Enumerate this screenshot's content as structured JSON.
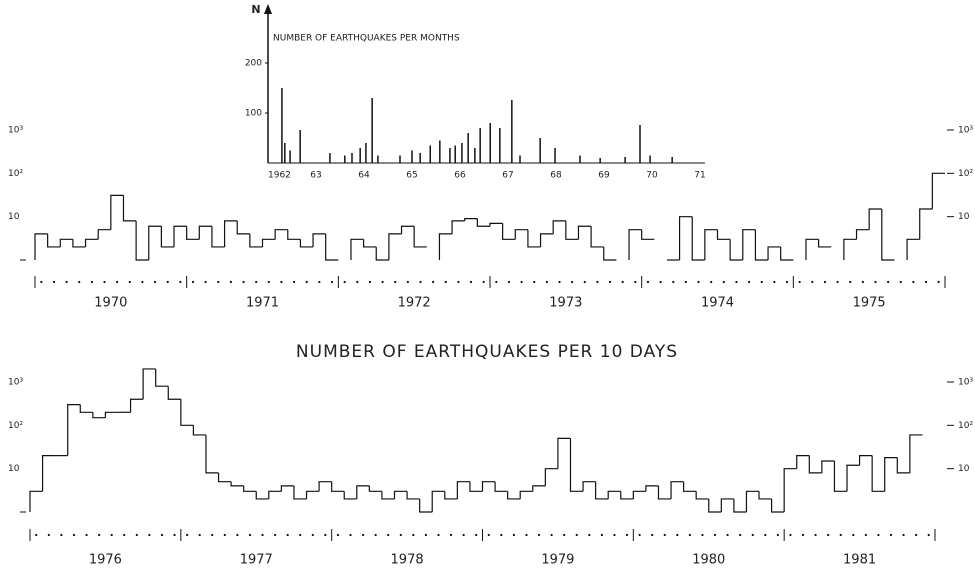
{
  "chart_data": [
    {
      "type": "bar",
      "title": "NUMBER OF EARTHQUAKES PER MONTHS",
      "y_label": "N",
      "color": "#111",
      "x": [
        1962.29,
        1962.35,
        1962.46,
        1962.67,
        1963.29,
        1963.6,
        1963.75,
        1963.92,
        1964.04,
        1964.17,
        1964.29,
        1964.75,
        1965.0,
        1965.17,
        1965.38,
        1965.58,
        1965.79,
        1965.9,
        1966.04,
        1966.17,
        1966.31,
        1966.42,
        1966.63,
        1966.83,
        1967.08,
        1967.25,
        1967.67,
        1967.98,
        1968.5,
        1968.92,
        1969.44,
        1969.75,
        1969.96,
        1970.42
      ],
      "values": [
        150,
        40,
        25,
        66,
        20,
        15,
        20,
        30,
        40,
        130,
        15,
        15,
        25,
        20,
        35,
        45,
        30,
        35,
        40,
        60,
        30,
        70,
        80,
        70,
        126,
        15,
        50,
        30,
        15,
        10,
        12,
        76,
        15,
        12
      ],
      "xlim": [
        1962,
        1971
      ],
      "xticks": [
        {
          "value": 1962,
          "label": "1962"
        },
        {
          "value": 1963,
          "label": "63"
        },
        {
          "value": 1964,
          "label": "64"
        },
        {
          "value": 1965,
          "label": "65"
        },
        {
          "value": 1966,
          "label": "66"
        },
        {
          "value": 1967,
          "label": "67"
        },
        {
          "value": 1968,
          "label": "68"
        },
        {
          "value": 1969,
          "label": "69"
        },
        {
          "value": 1970,
          "label": "70"
        },
        {
          "value": 1971,
          "label": "71"
        }
      ],
      "ylim": [
        0,
        280
      ],
      "yticks": [
        100,
        200
      ]
    },
    {
      "type": "step",
      "log": true,
      "color": "#111",
      "title": "NUMBER OF EARTHQUAKES PER 10 DAYS",
      "categories": [
        "1970",
        "1971",
        "1972",
        "1973",
        "1974",
        "1975"
      ],
      "values": [
        [
          4,
          2,
          3,
          2,
          3,
          5,
          31,
          8,
          1,
          6,
          2,
          6
        ],
        [
          3,
          6,
          2,
          8,
          4,
          2,
          3,
          5,
          3,
          2,
          4,
          1
        ],
        [
          null,
          3,
          2,
          1,
          4,
          6,
          2,
          null,
          4,
          8,
          9,
          6
        ],
        [
          7,
          3,
          5,
          2,
          4,
          8,
          3,
          6,
          2,
          1,
          null,
          5
        ],
        [
          3,
          null,
          1,
          10,
          1,
          5,
          3,
          1,
          5,
          1,
          2,
          1
        ],
        [
          null,
          3,
          2,
          null,
          3,
          5,
          15,
          1,
          null,
          3,
          15,
          100
        ]
      ],
      "ylim": [
        1,
        1000
      ],
      "yticks": [
        {
          "value": 1000,
          "label": "10³"
        },
        {
          "value": 100,
          "label": "10²"
        },
        10
      ]
    },
    {
      "type": "step",
      "log": true,
      "color": "#111",
      "categories": [
        "1976",
        "1977",
        "1978",
        "1979",
        "1980",
        "1981"
      ],
      "values": [
        [
          3,
          20,
          20,
          300,
          200,
          150,
          200,
          200,
          400,
          2000,
          800,
          400
        ],
        [
          100,
          60,
          8,
          5,
          4,
          3,
          2,
          3,
          4,
          2,
          3,
          5
        ],
        [
          3,
          2,
          4,
          3,
          2,
          3,
          2,
          1,
          3,
          2,
          5,
          3
        ],
        [
          5,
          3,
          2,
          3,
          4,
          10,
          50,
          3,
          5,
          2,
          3,
          2
        ],
        [
          3,
          4,
          2,
          5,
          3,
          2,
          1,
          2,
          1,
          3,
          2,
          1
        ],
        [
          10,
          20,
          8,
          15,
          3,
          12,
          20,
          3,
          18,
          8,
          60,
          null
        ]
      ],
      "ylim": [
        1,
        1000
      ],
      "yticks": [
        {
          "value": 1000,
          "label": "10³"
        },
        {
          "value": 100,
          "label": "10²"
        },
        10
      ]
    }
  ]
}
